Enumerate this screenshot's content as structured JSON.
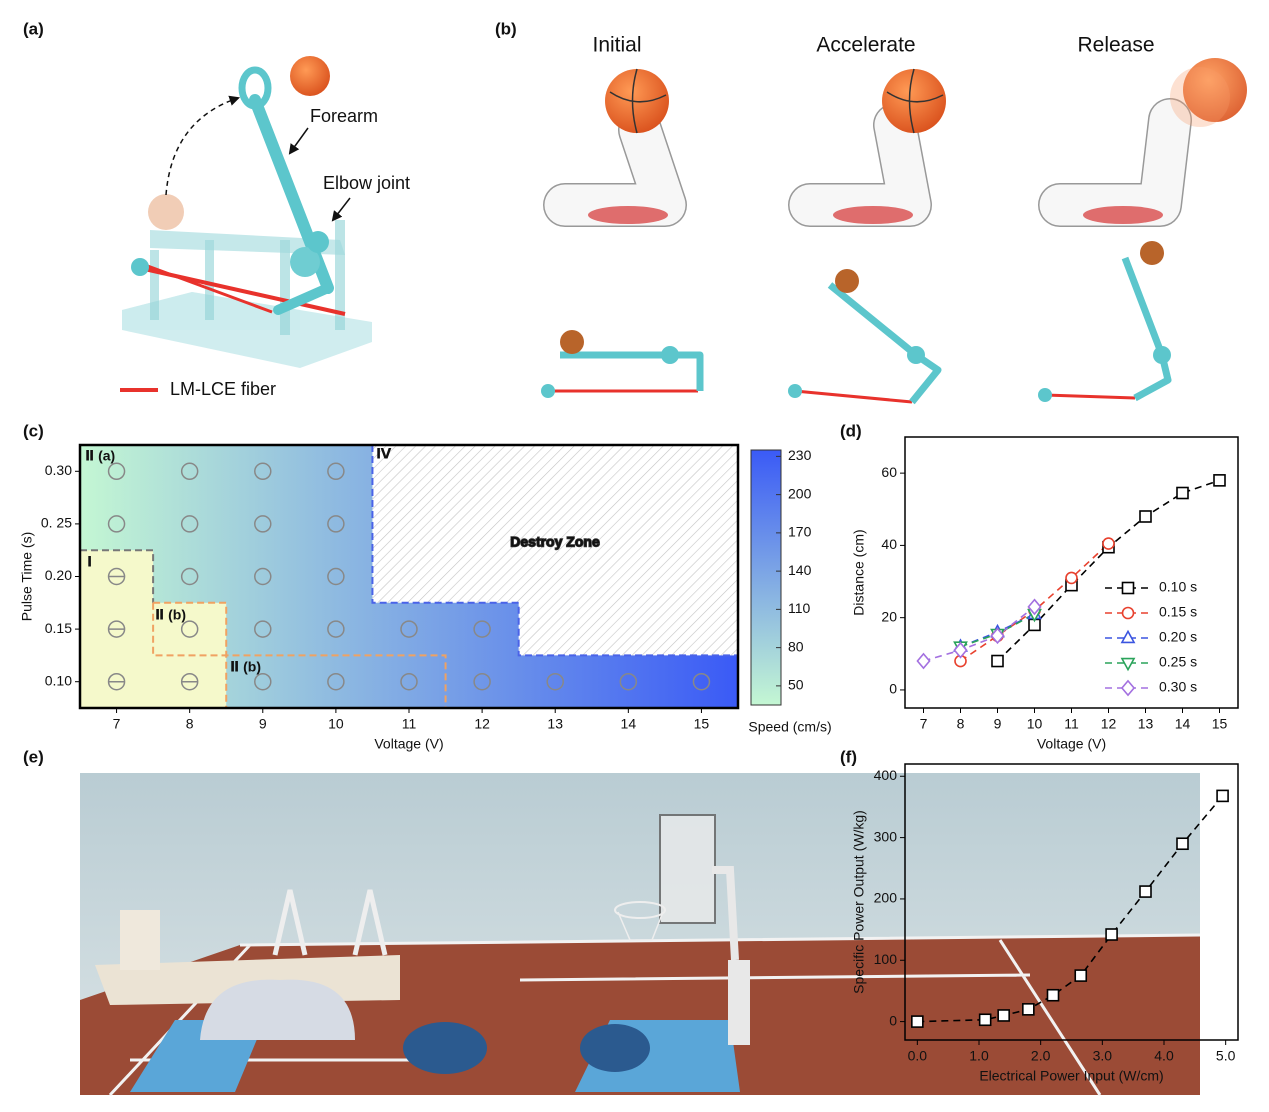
{
  "panels": {
    "a": {
      "label": "(a)",
      "annotations": [
        "Forearm",
        "Elbow joint",
        "LM-LCE fiber"
      ]
    },
    "b": {
      "label": "(b)",
      "stages": [
        "Initial",
        "Accelerate",
        "Release"
      ]
    },
    "e": {
      "label": "(e)"
    }
  },
  "chart_data": [
    {
      "label": "(c)",
      "type": "region",
      "xlabel": "Voltage (V)",
      "ylabel": "Pulse Time (s)",
      "xlim": [
        6.5,
        15.5
      ],
      "xticks": [
        7,
        8,
        9,
        10,
        11,
        12,
        13,
        14,
        15
      ],
      "ylim": [
        0.075,
        0.325
      ],
      "yticks": [
        {
          "value": 0.1,
          "label": "0.10"
        },
        0.15,
        {
          "value": 0.2,
          "label": "0.20"
        },
        {
          "value": 0.25,
          "label": "0. 25"
        },
        {
          "value": 0.3,
          "label": "0.30"
        }
      ],
      "colorbar": {
        "label": "Speed (cm/s)",
        "clim": [
          35,
          235
        ],
        "ticks": [
          50,
          80,
          110,
          140,
          170,
          200,
          230
        ],
        "colors": [
          "#c4f7d3",
          "#3a5af6"
        ]
      },
      "highlight": "#f5f9cb",
      "boundaries": [
        {
          "color": "#777777",
          "x": [
            6.5,
            7.5,
            7.5
          ],
          "y": [
            0.225,
            0.225,
            0.175
          ]
        },
        {
          "color": "#f0a262",
          "x": [
            7.5,
            8.5,
            8.5
          ],
          "y": [
            0.175,
            0.175,
            0.075
          ]
        },
        {
          "color": "#f0a262",
          "x": [
            7.5,
            7.5,
            11.5,
            11.5
          ],
          "y": [
            0.175,
            0.125,
            0.125,
            0.075
          ]
        },
        {
          "color": "#4a63e8",
          "x": [
            10.5,
            10.5,
            12.5,
            12.5,
            15.5
          ],
          "y": [
            0.325,
            0.175,
            0.175,
            0.125,
            0.125
          ]
        }
      ],
      "points": [
        {
          "marker": "circle",
          "x": [
            7,
            7,
            8,
            8,
            8,
            8,
            9,
            9,
            9,
            9,
            9,
            10,
            10,
            10,
            10,
            10,
            11,
            11,
            12,
            12,
            13,
            14,
            15
          ],
          "y": [
            0.25,
            0.3,
            0.15,
            0.2,
            0.25,
            0.3,
            0.1,
            0.15,
            0.2,
            0.25,
            0.3,
            0.1,
            0.15,
            0.2,
            0.25,
            0.3,
            0.1,
            0.15,
            0.1,
            0.15,
            0.1,
            0.1,
            0.1
          ]
        },
        {
          "marker": "circle-minus",
          "x": [
            7,
            7,
            7,
            8
          ],
          "y": [
            0.1,
            0.15,
            0.2,
            0.1
          ]
        }
      ],
      "annotations": [
        "Ⅱ (a)",
        "Ⅳ",
        "Ⅰ",
        "Ⅱ (b)",
        "Ⅱ (b)",
        "Destroy Zone"
      ]
    },
    {
      "label": "(d)",
      "type": "line",
      "xlabel": "Voltage (V)",
      "ylabel": "Distance (cm)",
      "xlim": [
        6.5,
        15.5
      ],
      "xticks": [
        7,
        8,
        9,
        10,
        11,
        12,
        13,
        14,
        15
      ],
      "ylim": [
        -5,
        70
      ],
      "yticks": [
        0,
        20,
        40,
        60
      ],
      "legend": "lower right",
      "series": [
        {
          "name": "0.10 s",
          "color": "#000000",
          "marker": "square",
          "x": [
            9,
            10,
            11,
            12,
            13,
            14,
            15
          ],
          "values": [
            8,
            18,
            29,
            39.5,
            48,
            54.5,
            58
          ]
        },
        {
          "name": "0.15 s",
          "color": "#e8412e",
          "marker": "circle",
          "x": [
            8,
            9,
            10,
            11,
            12
          ],
          "values": [
            8,
            15,
            22,
            31,
            40.5
          ]
        },
        {
          "name": "0.20 s",
          "color": "#3b55e0",
          "marker": "triangle",
          "x": [
            8,
            9,
            10
          ],
          "values": [
            12,
            16,
            21
          ]
        },
        {
          "name": "0.25 s",
          "color": "#2aa35a",
          "marker": "triangle-down",
          "x": [
            8,
            9,
            10
          ],
          "values": [
            12,
            15.5,
            21
          ]
        },
        {
          "name": "0.30 s",
          "color": "#a370e0",
          "marker": "diamond",
          "x": [
            7,
            8,
            9,
            10
          ],
          "values": [
            8,
            11,
            15,
            23
          ]
        }
      ]
    },
    {
      "label": "(f)",
      "type": "line",
      "xlabel": "Electrical Power Input (W/cm)",
      "ylabel": "Specific Power Output (W/kg)",
      "xlim": [
        -0.2,
        5.2
      ],
      "xticks": [
        {
          "value": 0,
          "label": "0.0"
        },
        {
          "value": 1,
          "label": "1.0"
        },
        {
          "value": 2,
          "label": "2.0"
        },
        {
          "value": 3,
          "label": "3.0"
        },
        {
          "value": 4,
          "label": "4.0"
        },
        {
          "value": 5,
          "label": "5.0"
        }
      ],
      "ylim": [
        -30,
        420
      ],
      "yticks": [
        0,
        100,
        200,
        300,
        400
      ],
      "series": [
        {
          "color": "#000000",
          "marker": "square",
          "x": [
            0,
            1.1,
            1.4,
            1.8,
            2.2,
            2.65,
            3.15,
            3.7,
            4.3,
            4.95
          ],
          "values": [
            0,
            3,
            10,
            20,
            43,
            75,
            142,
            212,
            290,
            368
          ]
        }
      ]
    }
  ]
}
